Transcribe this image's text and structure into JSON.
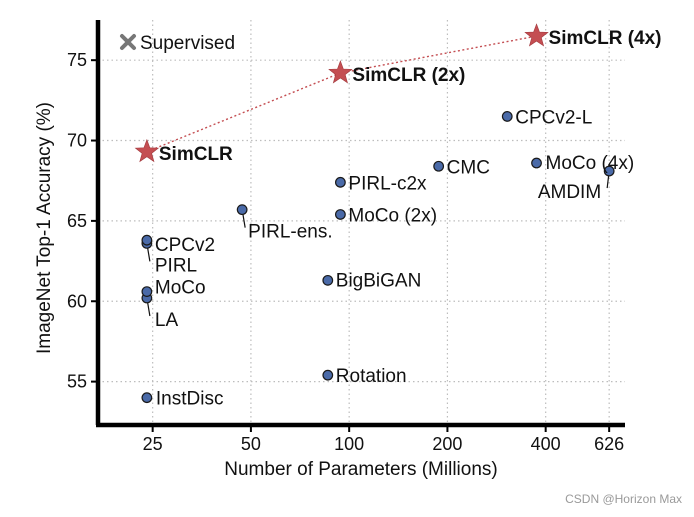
{
  "chart_data": {
    "type": "scatter",
    "xlabel": "Number of Parameters (Millions)",
    "ylabel": "ImageNet Top-1 Accuracy (%)",
    "x_scale": "log",
    "xlim": [
      17,
      700
    ],
    "ylim": [
      52.3,
      77.5
    ],
    "x_ticks": [
      25,
      50,
      100,
      200,
      400,
      626
    ],
    "x_tick_labels": [
      "25",
      "50",
      "100",
      "200",
      "400",
      "626"
    ],
    "y_ticks": [
      55,
      60,
      65,
      70,
      75
    ],
    "y_tick_labels": [
      "55",
      "60",
      "65",
      "70",
      "75"
    ],
    "grid": true,
    "legend": {
      "label": "Supervised",
      "marker": "x",
      "color": "#777777",
      "placement": "top-left"
    },
    "colors": {
      "point": "#4a6aa8",
      "point_edge": "#1a1a1a",
      "simclr": "#c44e52",
      "axis": "#000000",
      "grid": "#bdbdbd"
    },
    "points": [
      {
        "label": "InstDisc",
        "x": 24,
        "y": 54.0,
        "anchor": "start"
      },
      {
        "label": "Rotation",
        "x": 86,
        "y": 55.4,
        "anchor": "start"
      },
      {
        "label": "LA",
        "x": 24,
        "y": 60.2,
        "anchor": "start",
        "leader": true
      },
      {
        "label": "MoCo",
        "x": 24,
        "y": 60.6,
        "anchor": "start"
      },
      {
        "label": "BigBiGAN",
        "x": 86,
        "y": 61.3,
        "anchor": "start"
      },
      {
        "label": "PIRL",
        "x": 24,
        "y": 63.6,
        "anchor": "start",
        "leader": true
      },
      {
        "label": "CPCv2",
        "x": 24,
        "y": 63.8,
        "anchor": "start"
      },
      {
        "label": "PIRL-ens.",
        "x": 47,
        "y": 65.7,
        "anchor": "start",
        "leader": true
      },
      {
        "label": "MoCo (2x)",
        "x": 94,
        "y": 65.4,
        "anchor": "start"
      },
      {
        "label": "PIRL-c2x",
        "x": 94,
        "y": 67.4,
        "anchor": "start"
      },
      {
        "label": "CMC",
        "x": 188,
        "y": 68.4,
        "anchor": "start"
      },
      {
        "label": "AMDIM",
        "x": 626,
        "y": 68.1,
        "anchor": "end",
        "leader": true
      },
      {
        "label": "MoCo (4x)",
        "x": 375,
        "y": 68.6,
        "anchor": "start"
      },
      {
        "label": "CPCv2-L",
        "x": 305,
        "y": 71.5,
        "anchor": "start"
      }
    ],
    "series": [
      {
        "name": "SimCLR",
        "marker": "star",
        "x": [
          24,
          94,
          375
        ],
        "y": [
          69.3,
          74.2,
          76.5
        ],
        "point_labels": [
          "SimCLR",
          "SimCLR (2x)",
          "SimCLR (4x)"
        ]
      }
    ]
  },
  "watermark": "CSDN @Horizon Max"
}
